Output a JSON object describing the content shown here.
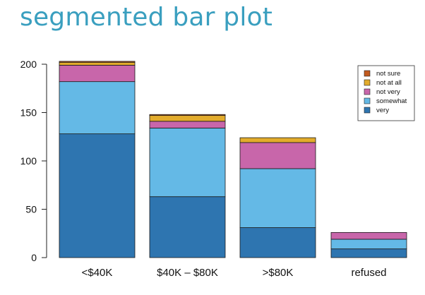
{
  "slide": {
    "title": "segmented bar plot"
  },
  "chart_data": {
    "type": "bar",
    "stacked": true,
    "categories": [
      "<$40K",
      "$40K – $80K",
      ">$80K",
      "refused"
    ],
    "series": [
      {
        "name": "very",
        "color": "#2e75b0",
        "values": [
          128,
          63,
          31,
          9
        ]
      },
      {
        "name": "somewhat",
        "color": "#64b9e6",
        "values": [
          54,
          71,
          61,
          10
        ]
      },
      {
        "name": "not very",
        "color": "#c866aa",
        "values": [
          17,
          7,
          27,
          7
        ]
      },
      {
        "name": "not at all",
        "color": "#e3ac2c",
        "values": [
          3,
          6,
          5,
          0
        ]
      },
      {
        "name": "not sure",
        "color": "#c25a1e",
        "values": [
          1,
          1,
          0,
          0
        ]
      }
    ],
    "yticks": [
      0,
      50,
      100,
      150,
      200
    ],
    "ylim": [
      0,
      210
    ],
    "legend": {
      "placement": "top-right",
      "order": [
        "not sure",
        "not at all",
        "not very",
        "somewhat",
        "very"
      ]
    },
    "grid": false
  }
}
